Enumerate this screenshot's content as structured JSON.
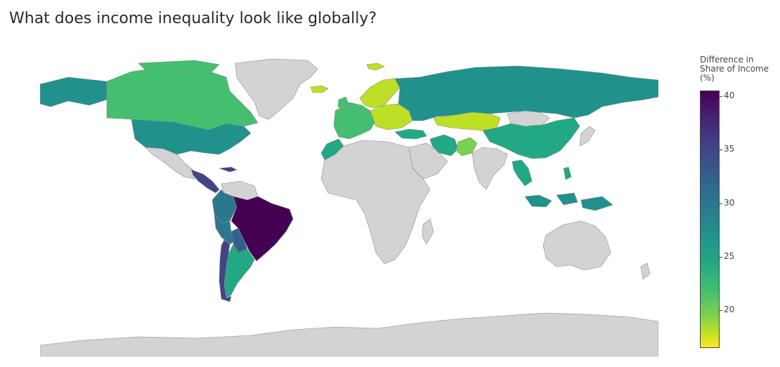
{
  "title": "What does income inequality look like globally?",
  "legend": {
    "title_lines": [
      "Difference in",
      "Share of Income",
      "(%)"
    ],
    "ticks": [
      {
        "value": 40,
        "label": "40"
      },
      {
        "value": 35,
        "label": "35"
      },
      {
        "value": 30,
        "label": "30"
      },
      {
        "value": 25,
        "label": "25"
      },
      {
        "value": 20,
        "label": "20"
      }
    ],
    "range": [
      16.5,
      40.5
    ]
  },
  "colors": {
    "no_data": "#d3d3d3",
    "scale": [
      "#fde725",
      "#bddf26",
      "#7ad151",
      "#44bf70",
      "#22a884",
      "#21918c",
      "#2a788e",
      "#355f8d",
      "#414487",
      "#482475",
      "#440154"
    ]
  },
  "countries": [
    {
      "name": "Canada",
      "value": 23
    },
    {
      "name": "United States",
      "value": 28
    },
    {
      "name": "Alaska",
      "value": 28
    },
    {
      "name": "Mexico",
      "value": 0
    },
    {
      "name": "Central America",
      "value": 36
    },
    {
      "name": "Colombia",
      "value": 31
    },
    {
      "name": "Venezuela",
      "value": 0
    },
    {
      "name": "Brazil",
      "value": 40
    },
    {
      "name": "Peru",
      "value": 32
    },
    {
      "name": "Bolivia",
      "value": 34
    },
    {
      "name": "Argentina",
      "value": 26
    },
    {
      "name": "Chile",
      "value": 35
    },
    {
      "name": "Greenland",
      "value": 0
    },
    {
      "name": "Iceland",
      "value": 19
    },
    {
      "name": "Scandinavia",
      "value": 19
    },
    {
      "name": "Western Europe",
      "value": 23
    },
    {
      "name": "Eastern Europe",
      "value": 18
    },
    {
      "name": "Russia",
      "value": 29
    },
    {
      "name": "Kazakhstan",
      "value": 18
    },
    {
      "name": "China",
      "value": 27
    },
    {
      "name": "Mongolia",
      "value": 0
    },
    {
      "name": "Iran",
      "value": 26
    },
    {
      "name": "Turkey",
      "value": 27
    },
    {
      "name": "Pakistan",
      "value": 22
    },
    {
      "name": "India",
      "value": 0
    },
    {
      "name": "Thailand",
      "value": 26
    },
    {
      "name": "Indonesia",
      "value": 28
    },
    {
      "name": "Morocco",
      "value": 26
    },
    {
      "name": "Africa",
      "value": 0
    },
    {
      "name": "Arabian Peninsula",
      "value": 0
    },
    {
      "name": "Australia",
      "value": 0
    },
    {
      "name": "Antarctica",
      "value": 0
    }
  ]
}
